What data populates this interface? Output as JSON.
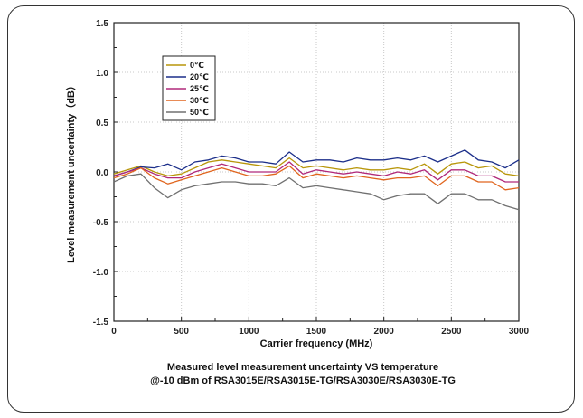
{
  "chart_data": {
    "type": "line",
    "xlabel": "Carrier frequency (MHz)",
    "ylabel": "Level measurement uncertainty（dB）",
    "caption_lines": [
      "Measured level measurement uncertainty VS temperature",
      "@-10 dBm of RSA3015E/RSA3015E-TG/RSA3030E/RSA3030E-TG"
    ],
    "xlim": [
      0,
      3000
    ],
    "ylim": [
      -1.5,
      1.5
    ],
    "x_ticks": [
      "0",
      "500",
      "1000",
      "1500",
      "2000",
      "2500",
      "3000"
    ],
    "y_ticks": [
      "1.5",
      "1.0",
      "0.5",
      "0.0",
      "-0.5",
      "-1.0",
      "-1.5"
    ],
    "grid": true,
    "legend_position": "top-left",
    "x": [
      0,
      100,
      200,
      300,
      400,
      500,
      600,
      700,
      800,
      900,
      1000,
      1100,
      1200,
      1300,
      1400,
      1500,
      1600,
      1700,
      1800,
      1900,
      2000,
      2100,
      2200,
      2300,
      2400,
      2500,
      2600,
      2700,
      2800,
      2900,
      3000
    ],
    "series": [
      {
        "name": "0℃",
        "color": "#b8960a",
        "values": [
          -0.02,
          0.02,
          0.06,
          0.0,
          -0.04,
          -0.02,
          0.04,
          0.1,
          0.12,
          0.1,
          0.08,
          0.06,
          0.04,
          0.14,
          0.04,
          0.06,
          0.04,
          0.02,
          0.04,
          0.02,
          0.02,
          0.04,
          0.02,
          0.08,
          -0.02,
          0.08,
          0.1,
          0.04,
          0.06,
          -0.02,
          -0.04
        ]
      },
      {
        "name": "20℃",
        "color": "#1c2f8a",
        "values": [
          -0.04,
          0.0,
          0.05,
          0.04,
          0.08,
          0.02,
          0.1,
          0.12,
          0.16,
          0.14,
          0.1,
          0.1,
          0.08,
          0.2,
          0.1,
          0.12,
          0.12,
          0.1,
          0.14,
          0.12,
          0.12,
          0.14,
          0.12,
          0.16,
          0.1,
          0.16,
          0.22,
          0.12,
          0.1,
          0.04,
          0.12
        ]
      },
      {
        "name": "25℃",
        "color": "#b0287a",
        "values": [
          -0.04,
          0.0,
          0.04,
          -0.02,
          -0.06,
          -0.06,
          0.0,
          0.04,
          0.08,
          0.04,
          0.0,
          0.0,
          0.0,
          0.1,
          -0.02,
          0.02,
          0.0,
          -0.02,
          0.0,
          -0.02,
          -0.04,
          0.0,
          -0.02,
          0.02,
          -0.08,
          0.02,
          0.02,
          -0.04,
          -0.04,
          -0.1,
          -0.1
        ]
      },
      {
        "name": "30℃",
        "color": "#e0651e",
        "values": [
          -0.06,
          -0.02,
          0.04,
          -0.06,
          -0.12,
          -0.08,
          -0.04,
          0.0,
          0.04,
          0.0,
          -0.04,
          -0.04,
          -0.02,
          0.06,
          -0.06,
          -0.02,
          -0.04,
          -0.06,
          -0.04,
          -0.06,
          -0.08,
          -0.06,
          -0.06,
          -0.04,
          -0.14,
          -0.04,
          -0.04,
          -0.1,
          -0.1,
          -0.18,
          -0.16
        ]
      },
      {
        "name": "50℃",
        "color": "#707070",
        "values": [
          -0.1,
          -0.04,
          -0.02,
          -0.16,
          -0.26,
          -0.18,
          -0.14,
          -0.12,
          -0.1,
          -0.1,
          -0.12,
          -0.12,
          -0.14,
          -0.06,
          -0.16,
          -0.14,
          -0.16,
          -0.18,
          -0.2,
          -0.22,
          -0.28,
          -0.24,
          -0.22,
          -0.22,
          -0.32,
          -0.22,
          -0.22,
          -0.28,
          -0.28,
          -0.34,
          -0.38
        ]
      }
    ]
  }
}
